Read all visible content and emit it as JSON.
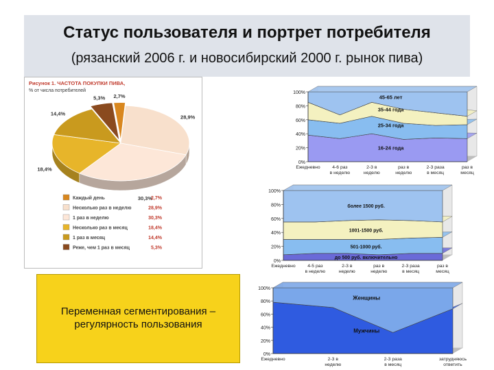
{
  "slide": {
    "title": "Статус пользователя и портрет потребителя",
    "subtitle": "(рязанский 2006 г. и новосибирский 2000 г. рынок пива)",
    "note": "Переменная сегментирования – регулярность пользования"
  },
  "chart_data": [
    {
      "type": "pie",
      "title": "Рисунок 1. ЧАСТОТА ПОКУПКИ ПИВА,",
      "subtitle": "% от числа потребителей",
      "slices": [
        {
          "label": "Каждый день",
          "value": 2.7,
          "display": "2,7%",
          "color": "#d9871e"
        },
        {
          "label": "Несколько раз в неделю",
          "value": 28.9,
          "display": "28,9%",
          "color": "#f8e0cc"
        },
        {
          "label": "1 раз в неделю",
          "value": 30.3,
          "display": "30,3%",
          "color": "#fde7d8"
        },
        {
          "label": "Несколько раз в месяц",
          "value": 18.4,
          "display": "18,4%",
          "color": "#e7b52a"
        },
        {
          "label": "1 раз в месяц",
          "value": 14.4,
          "display": "14,4%",
          "color": "#c99a1e"
        },
        {
          "label": "Реже, чем 1 раз в месяц",
          "value": 5.3,
          "display": "5,3%",
          "color": "#8a4a1e"
        }
      ]
    },
    {
      "type": "area",
      "stacked": "percent",
      "categories": [
        "Ежедневно",
        "4-6 раз в неделю",
        "2-3 в неделю",
        "раз в неделю",
        "2-3 раза в месяц",
        "раз в месяц"
      ],
      "series": [
        {
          "name": "16-24 года",
          "values": [
            38,
            33,
            40,
            32,
            34,
            33
          ],
          "color": "#9a9af2"
        },
        {
          "name": "25-34 года",
          "values": [
            22,
            22,
            25,
            23,
            18,
            20
          ],
          "color": "#88bdf0"
        },
        {
          "name": "35-44 года",
          "values": [
            25,
            12,
            20,
            20,
            18,
            12
          ],
          "color": "#f4f1c0"
        },
        {
          "name": "45-65 лет",
          "values": [
            15,
            33,
            15,
            25,
            30,
            35
          ],
          "color": "#9ec3f0"
        }
      ],
      "yticks": [
        "0%",
        "20%",
        "40%",
        "60%",
        "80%",
        "100%"
      ],
      "ylim": [
        0,
        100
      ]
    },
    {
      "type": "area",
      "stacked": "percent",
      "categories": [
        "Ежедневно",
        "4-5 раз в неделю",
        "2-3 в неделю",
        "раз в неделю",
        "2-3 раза в месяц",
        "раз в месяц"
      ],
      "series": [
        {
          "name": "до 500 руб. включительно",
          "values": [
            8,
            10,
            10,
            8,
            10,
            10
          ],
          "color": "#6a6ad8"
        },
        {
          "name": "501-1000 руб.",
          "values": [
            22,
            20,
            20,
            22,
            22,
            23
          ],
          "color": "#88bdf0"
        },
        {
          "name": "1001-1500 руб.",
          "values": [
            25,
            25,
            27,
            28,
            25,
            22
          ],
          "color": "#f4f1c0"
        },
        {
          "name": "более 1500 руб.",
          "values": [
            45,
            45,
            43,
            42,
            43,
            45
          ],
          "color": "#9ec3f0"
        }
      ],
      "yticks": [
        "0%",
        "20%",
        "40%",
        "60%",
        "80%",
        "100%"
      ],
      "ylim": [
        0,
        100
      ]
    },
    {
      "type": "area",
      "stacked": "percent",
      "categories": [
        "Ежедневно",
        "2-3 в неделю",
        "2-3 раза в месяц",
        "затрудняюсь ответить"
      ],
      "series": [
        {
          "name": "Мужчины",
          "values": [
            78,
            70,
            32,
            68
          ],
          "color": "#2f5be0"
        },
        {
          "name": "Женщины",
          "values": [
            22,
            30,
            68,
            32
          ],
          "color": "#7aa7ea"
        }
      ],
      "yticks": [
        "0%",
        "20%",
        "40%",
        "60%",
        "80%",
        "100%"
      ],
      "ylim": [
        0,
        100
      ]
    }
  ]
}
